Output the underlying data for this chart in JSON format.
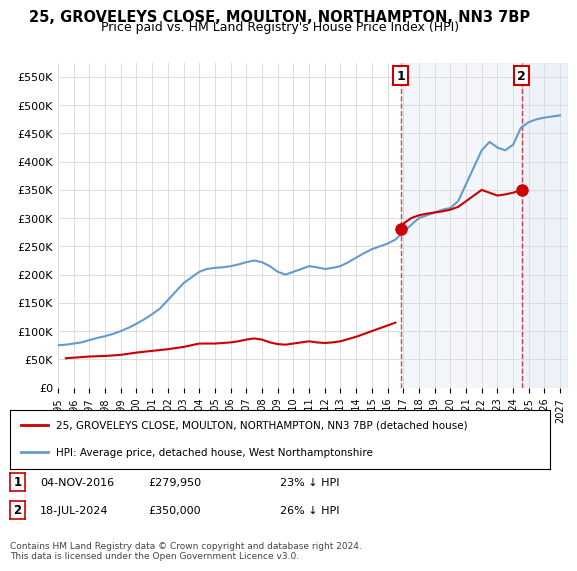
{
  "title": "25, GROVELEYS CLOSE, MOULTON, NORTHAMPTON, NN3 7BP",
  "subtitle": "Price paid vs. HM Land Registry's House Price Index (HPI)",
  "title_fontsize": 11,
  "subtitle_fontsize": 9.5,
  "ylabel_ticks": [
    "£0",
    "£50K",
    "£100K",
    "£150K",
    "£200K",
    "£250K",
    "£300K",
    "£350K",
    "£400K",
    "£450K",
    "£500K",
    "£550K"
  ],
  "ytick_values": [
    0,
    50000,
    100000,
    150000,
    200000,
    250000,
    300000,
    350000,
    400000,
    450000,
    500000,
    550000
  ],
  "ylim": [
    0,
    575000
  ],
  "xlim_start": 1995.0,
  "xlim_end": 2027.5,
  "hpi_color": "#6699cc",
  "property_color": "#cc0000",
  "sale1_date_x": 2016.84,
  "sale1_price": 279950,
  "sale2_date_x": 2024.54,
  "sale2_price": 350000,
  "legend_label_red": "25, GROVELEYS CLOSE, MOULTON, NORTHAMPTON, NN3 7BP (detached house)",
  "legend_label_blue": "HPI: Average price, detached house, West Northamptonshire",
  "table_row1": [
    "1",
    "04-NOV-2016",
    "£279,950",
    "23% ↓ HPI"
  ],
  "table_row2": [
    "2",
    "18-JUL-2024",
    "£350,000",
    "26% ↓ HPI"
  ],
  "footnote": "Contains HM Land Registry data © Crown copyright and database right 2024.\nThis data is licensed under the Open Government Licence v3.0.",
  "hpi_years": [
    1995.0,
    1995.5,
    1996.0,
    1996.5,
    1997.0,
    1997.5,
    1998.0,
    1998.5,
    1999.0,
    1999.5,
    2000.0,
    2000.5,
    2001.0,
    2001.5,
    2002.0,
    2002.5,
    2003.0,
    2003.5,
    2004.0,
    2004.5,
    2005.0,
    2005.5,
    2006.0,
    2006.5,
    2007.0,
    2007.5,
    2008.0,
    2008.5,
    2009.0,
    2009.5,
    2010.0,
    2010.5,
    2011.0,
    2011.5,
    2012.0,
    2012.5,
    2013.0,
    2013.5,
    2014.0,
    2014.5,
    2015.0,
    2015.5,
    2016.0,
    2016.5,
    2017.0,
    2017.5,
    2018.0,
    2018.5,
    2019.0,
    2019.5,
    2020.0,
    2020.5,
    2021.0,
    2021.5,
    2022.0,
    2022.5,
    2023.0,
    2023.5,
    2024.0,
    2024.5,
    2025.0,
    2025.5,
    2026.0,
    2026.5,
    2027.0
  ],
  "hpi_values": [
    75000,
    76000,
    78000,
    80000,
    84000,
    88000,
    91000,
    95000,
    100000,
    106000,
    113000,
    121000,
    130000,
    140000,
    155000,
    170000,
    185000,
    195000,
    205000,
    210000,
    212000,
    213000,
    215000,
    218000,
    222000,
    225000,
    222000,
    215000,
    205000,
    200000,
    205000,
    210000,
    215000,
    213000,
    210000,
    212000,
    215000,
    222000,
    230000,
    238000,
    245000,
    250000,
    255000,
    262000,
    275000,
    288000,
    300000,
    305000,
    310000,
    315000,
    318000,
    330000,
    360000,
    390000,
    420000,
    435000,
    425000,
    420000,
    430000,
    460000,
    470000,
    475000,
    478000,
    480000,
    482000
  ],
  "prop_years": [
    1995.5,
    1996.0,
    1997.0,
    1998.0,
    1999.0,
    2000.0,
    2001.0,
    2002.0,
    2003.0,
    2004.0,
    2005.0,
    2005.5,
    2006.0,
    2006.5,
    2007.0,
    2007.5,
    2008.0,
    2008.5,
    2009.0,
    2009.5,
    2010.0,
    2010.5,
    2011.0,
    2011.5,
    2012.0,
    2012.5,
    2013.0,
    2013.5,
    2014.0,
    2014.5,
    2015.0,
    2015.5,
    2016.0,
    2016.5,
    2016.84,
    2017.0,
    2017.5,
    2018.0,
    2018.5,
    2019.0,
    2019.5,
    2020.0,
    2020.5,
    2021.0,
    2021.5,
    2022.0,
    2022.5,
    2023.0,
    2023.5,
    2024.0,
    2024.54
  ],
  "prop_values": [
    52000,
    53000,
    55000,
    56000,
    58000,
    62000,
    65000,
    68000,
    72000,
    78000,
    78000,
    79000,
    80000,
    82000,
    85000,
    87000,
    85000,
    80000,
    77000,
    76000,
    78000,
    80000,
    82000,
    80000,
    79000,
    80000,
    82000,
    86000,
    90000,
    95000,
    100000,
    105000,
    110000,
    115000,
    279950,
    290000,
    300000,
    305000,
    308000,
    310000,
    312000,
    315000,
    320000,
    330000,
    340000,
    350000,
    345000,
    340000,
    342000,
    345000,
    350000
  ]
}
